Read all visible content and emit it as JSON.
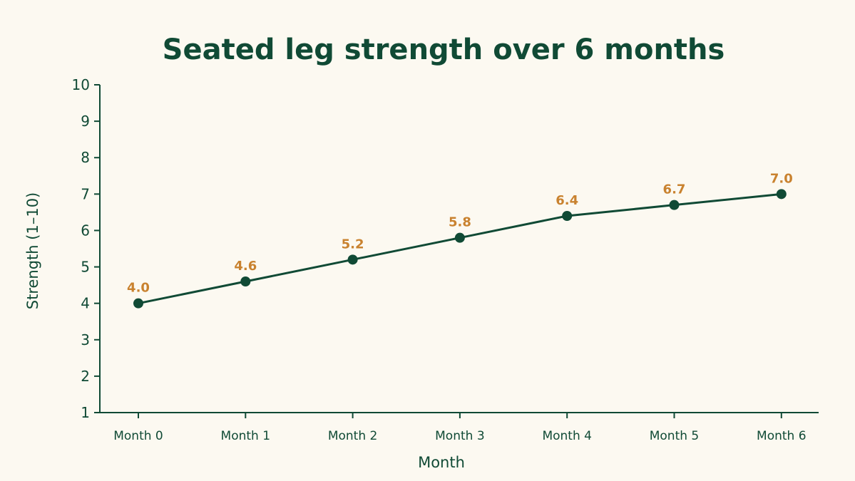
{
  "chart_data": {
    "type": "line",
    "title": "Seated leg strength over 6 months",
    "xlabel": "Month",
    "ylabel": "Strength (1–10)",
    "categories": [
      "Month 0",
      "Month 1",
      "Month 2",
      "Month 3",
      "Month 4",
      "Month 5",
      "Month 6"
    ],
    "series": [
      {
        "values": [
          4.0,
          4.6,
          5.2,
          5.8,
          6.4,
          6.7,
          7.0
        ],
        "data_labels": [
          "4.0",
          "4.6",
          "5.2",
          "5.8",
          "6.4",
          "6.7",
          "7.0"
        ]
      }
    ],
    "ylim": [
      1,
      10
    ],
    "yticks": [
      "1",
      "2",
      "3",
      "4",
      "5",
      "6",
      "7",
      "8",
      "9",
      "10"
    ],
    "grid": false,
    "legend": "none",
    "colors": {
      "background": "#fcf9f1",
      "line": "#104a35",
      "text": "#104a35",
      "data_label": "#c9822f"
    }
  }
}
